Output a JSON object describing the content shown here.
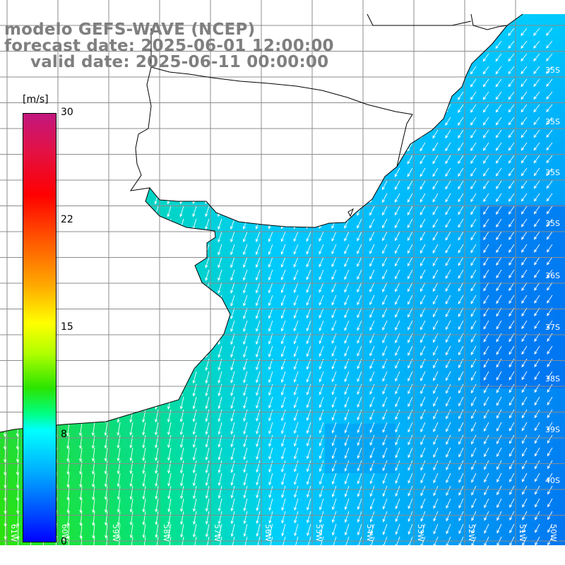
{
  "title": {
    "model": "modelo GEFS-WAVE (NCEP)",
    "forecast": "forecast date: 2025-06-01 12:00:00",
    "valid": "valid date: 2025-06-11 00:00:00"
  },
  "colorbar": {
    "unit": "[m/s]",
    "ticks": [
      "30",
      "22",
      "15",
      "8",
      "0"
    ],
    "colors": [
      "#c2177e",
      "#ff0000",
      "#ffa800",
      "#ffff00",
      "#2ce400",
      "#00ffff",
      "#00aaff",
      "#0000ff"
    ]
  },
  "lat_labels": [
    "35S",
    "35S",
    "35S",
    "35S",
    "36S",
    "37S",
    "38S",
    "39S",
    "40S"
  ],
  "lon_labels": [
    "61W",
    "60W",
    "59W",
    "58W",
    "57W",
    "56W",
    "55W",
    "54W",
    "53W",
    "52W",
    "51W",
    "50W"
  ],
  "field": {
    "variable": "wind speed and direction",
    "land_color": "#ffffff",
    "coast_color": "#000000",
    "grid_color": "#8c8c8c",
    "arrow_color": "#ffffff"
  }
}
